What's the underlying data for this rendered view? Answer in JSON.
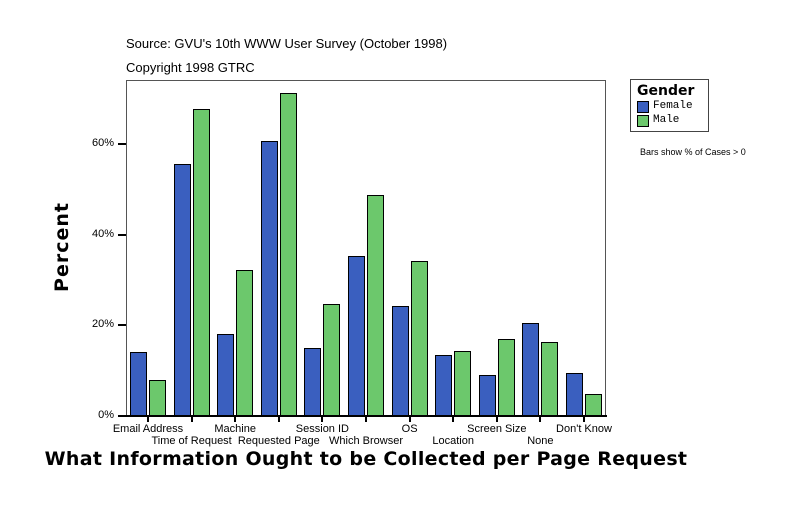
{
  "header": {
    "source": "Source: GVU's 10th WWW User Survey (October 1998)",
    "copyright": "Copyright 1998 GTRC"
  },
  "legend": {
    "title": "Gender",
    "items": [
      {
        "label": "Female",
        "color": "#3a5fbf"
      },
      {
        "label": "Male",
        "color": "#6cc86c"
      }
    ],
    "note": "Bars show % of Cases > 0"
  },
  "axes": {
    "ylabel": "Percent",
    "xlabel": "What Information Ought to be Collected per Page Request",
    "yticks": [
      "0%",
      "20%",
      "40%",
      "60%"
    ]
  },
  "chart_data": {
    "type": "bar",
    "title": "What Information Ought to be Collected per Page Request",
    "subtitle": "Source: GVU's 10th WWW User Survey (October 1998)",
    "xlabel": "What Information Ought to be Collected per Page Request",
    "ylabel": "Percent",
    "ylim": [
      0,
      74
    ],
    "yticks": [
      0,
      20,
      40,
      60
    ],
    "grid": false,
    "legend_position": "right",
    "legend_title": "Gender",
    "categories": [
      "Email Address",
      "Time of Request",
      "Machine",
      "Requested Page",
      "Session ID",
      "Which Browser",
      "OS",
      "Location",
      "Screen Size",
      "None",
      "Don't Know"
    ],
    "series": [
      {
        "name": "Female",
        "color": "#3a5fbf",
        "values": [
          14.2,
          55.7,
          18.1,
          60.8,
          15.0,
          35.4,
          24.3,
          13.5,
          9.1,
          20.6,
          9.5
        ]
      },
      {
        "name": "Male",
        "color": "#6cc86c",
        "values": [
          8.0,
          67.9,
          32.3,
          71.5,
          24.8,
          48.9,
          34.3,
          14.4,
          17.0,
          16.4,
          4.9
        ]
      }
    ],
    "annotations": [
      "Bars show % of Cases > 0",
      "Copyright 1998 GTRC"
    ]
  }
}
